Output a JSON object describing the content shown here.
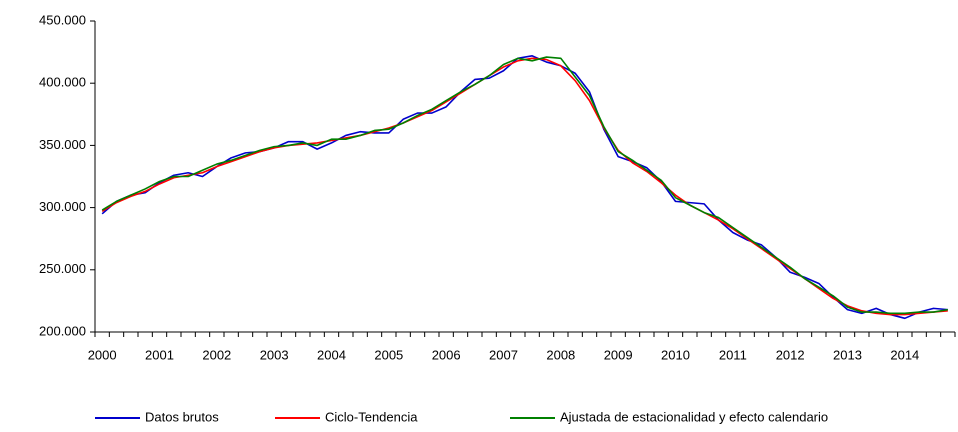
{
  "chart_data": {
    "type": "line",
    "categories": [
      "2000",
      null,
      null,
      null,
      "2001",
      null,
      null,
      null,
      "2002",
      null,
      null,
      null,
      "2003",
      null,
      null,
      null,
      "2004",
      null,
      null,
      null,
      "2005",
      null,
      null,
      null,
      "2006",
      null,
      null,
      null,
      "2007",
      null,
      null,
      null,
      "2008",
      null,
      null,
      null,
      "2009",
      null,
      null,
      null,
      "2010",
      null,
      null,
      null,
      "2011",
      null,
      null,
      null,
      "2012",
      null,
      null,
      null,
      "2013",
      null,
      null,
      null,
      "2014",
      null,
      null,
      null
    ],
    "ylim": [
      200000,
      450000
    ],
    "yticks": [
      {
        "value": 200000,
        "label": "200.000"
      },
      {
        "value": 250000,
        "label": "250.000"
      },
      {
        "value": 300000,
        "label": "300.000"
      },
      {
        "value": 350000,
        "label": "350.000"
      },
      {
        "value": 400000,
        "label": "400.000"
      },
      {
        "value": 450000,
        "label": "450.000"
      }
    ],
    "grid": false,
    "legend": "bottom",
    "series": [
      {
        "name": "Datos brutos",
        "color": "#0000cc",
        "values": [
          295000,
          305000,
          310000,
          312000,
          320000,
          326000,
          328000,
          325000,
          333000,
          340000,
          344000,
          345000,
          348000,
          353000,
          353000,
          347000,
          352000,
          358000,
          361000,
          360000,
          360000,
          371000,
          376000,
          376000,
          381000,
          393000,
          403000,
          404000,
          410000,
          420000,
          422000,
          417000,
          414000,
          408000,
          393000,
          363000,
          341000,
          337000,
          332000,
          321000,
          305000,
          304000,
          303000,
          290000,
          280000,
          274000,
          270000,
          260000,
          248000,
          244000,
          239000,
          228000,
          218000,
          215000,
          219000,
          214000,
          211000,
          216000,
          219000,
          218000
        ]
      },
      {
        "name": "Ciclo-Tendencia",
        "color": "#ff0000",
        "values": [
          297000,
          304000,
          309000,
          313000,
          319000,
          324000,
          326000,
          328000,
          333000,
          337000,
          341000,
          345000,
          348000,
          350000,
          351000,
          352000,
          354000,
          356000,
          358000,
          361000,
          364000,
          368000,
          373000,
          378000,
          385000,
          392000,
          399000,
          406000,
          413000,
          418000,
          420000,
          419000,
          414000,
          402000,
          386000,
          364000,
          346000,
          336000,
          329000,
          320000,
          310000,
          302000,
          296000,
          290000,
          283000,
          275000,
          267000,
          259000,
          251000,
          243000,
          235000,
          227000,
          221000,
          217000,
          215000,
          214000,
          214000,
          215000,
          216000,
          217000
        ]
      },
      {
        "name": "Ajustada de estacionalidad y efecto calendario",
        "color": "#008000",
        "values": [
          298000,
          305000,
          310000,
          315000,
          321000,
          325000,
          325000,
          330000,
          335000,
          338000,
          342000,
          346000,
          349000,
          350000,
          352000,
          350000,
          355000,
          355000,
          358000,
          362000,
          363000,
          368000,
          374000,
          379000,
          386000,
          393000,
          399000,
          406000,
          415000,
          420000,
          418000,
          421000,
          420000,
          405000,
          390000,
          365000,
          345000,
          338000,
          330000,
          322000,
          308000,
          302000,
          296000,
          292000,
          284000,
          276000,
          268000,
          260000,
          252000,
          243000,
          236000,
          229000,
          220000,
          216000,
          216000,
          215000,
          215000,
          216000,
          216000,
          218000
        ]
      }
    ]
  }
}
